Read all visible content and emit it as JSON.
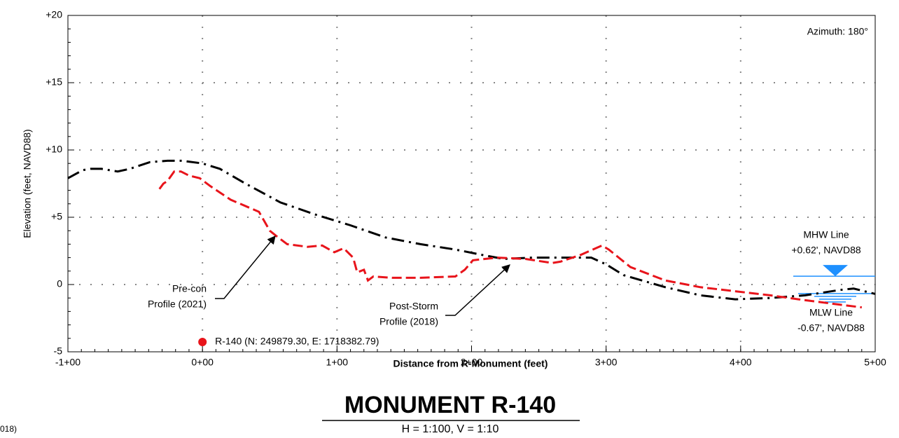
{
  "chart_data": {
    "type": "line",
    "title": "MONUMENT R-140",
    "subtitle": "H = 1:100, V = 1:10",
    "x_label": "Distance from R-Monument (feet)",
    "y_label": "Elevation (feet, NAVD88)",
    "azimuth": "Azimuth: 180°",
    "corner_text": "018)",
    "xlim": [
      -100,
      500
    ],
    "ylim": [
      -5,
      20
    ],
    "xticks": [
      {
        "value": -100,
        "label": "-1+00"
      },
      {
        "value": 0,
        "label": "0+00"
      },
      {
        "value": 100,
        "label": "1+00"
      },
      {
        "value": 200,
        "label": "2+00"
      },
      {
        "value": 300,
        "label": "3+00"
      },
      {
        "value": 400,
        "label": "4+00"
      },
      {
        "value": 500,
        "label": "5+00"
      }
    ],
    "yticks": [
      -5,
      0,
      {
        "value": 5,
        "label": "+5"
      },
      {
        "value": 10,
        "label": "+10"
      },
      {
        "value": 15,
        "label": "+15"
      },
      {
        "value": 20,
        "label": "+20"
      }
    ],
    "grid": true,
    "series": [
      {
        "color": "#000000",
        "style": "dashdot",
        "x": [
          -100,
          -89,
          -83,
          -75,
          -63,
          -54,
          -39,
          -26,
          -15,
          0,
          13,
          32,
          58,
          84,
          110,
          136,
          162,
          188,
          208,
          224,
          245,
          266,
          289,
          300,
          313,
          344,
          370,
          396,
          422,
          448,
          474,
          484,
          500
        ],
        "values": [
          7.9,
          8.5,
          8.6,
          8.6,
          8.4,
          8.6,
          9.1,
          9.2,
          9.2,
          9.0,
          8.6,
          7.5,
          6.1,
          5.2,
          4.4,
          3.5,
          3.0,
          2.6,
          2.2,
          1.9,
          2.0,
          2.0,
          2.0,
          1.5,
          0.7,
          -0.2,
          -0.8,
          -1.1,
          -1.0,
          -0.8,
          -0.4,
          -0.3,
          -0.7
        ]
      },
      {
        "color": "#e8141b",
        "style": "dashed",
        "x": [
          -32,
          -29,
          -26,
          -21,
          -16,
          -10,
          -2,
          6,
          21,
          42,
          50,
          55,
          63,
          78,
          89,
          98,
          105,
          112,
          115,
          120,
          123,
          127,
          141,
          162,
          188,
          195,
          201,
          219,
          240,
          260,
          266,
          281,
          297,
          302,
          318,
          344,
          370,
          396,
          422,
          443,
          474,
          490
        ],
        "values": [
          7.1,
          7.5,
          7.7,
          8.4,
          8.4,
          8.1,
          7.9,
          7.3,
          6.3,
          5.4,
          4.0,
          3.6,
          3.0,
          2.8,
          2.9,
          2.4,
          2.7,
          2.0,
          0.9,
          1.1,
          0.3,
          0.6,
          0.5,
          0.5,
          0.6,
          1.1,
          1.8,
          2.0,
          1.9,
          1.6,
          1.7,
          2.2,
          2.9,
          2.6,
          1.3,
          0.3,
          -0.2,
          -0.5,
          -0.8,
          -1.1,
          -1.5,
          -1.7
        ]
      }
    ],
    "annotations": [
      {
        "lines": [
          "Pre-con",
          "Profile (2021)"
        ]
      },
      {
        "lines": [
          "Post-Storm",
          "Profile (2018)"
        ]
      }
    ],
    "mhw": {
      "value": 0.62,
      "lines": [
        "MHW Line",
        "+0.62', NAVD88"
      ],
      "color": "#1e90ff"
    },
    "mlw": {
      "value": -0.67,
      "lines": [
        "MLW Line",
        "-0.67', NAVD88"
      ],
      "color": "#1e90ff"
    },
    "monument": {
      "label": "R-140 (N: 249879.30, E: 1718382.79)",
      "color": "#e8141b"
    }
  }
}
